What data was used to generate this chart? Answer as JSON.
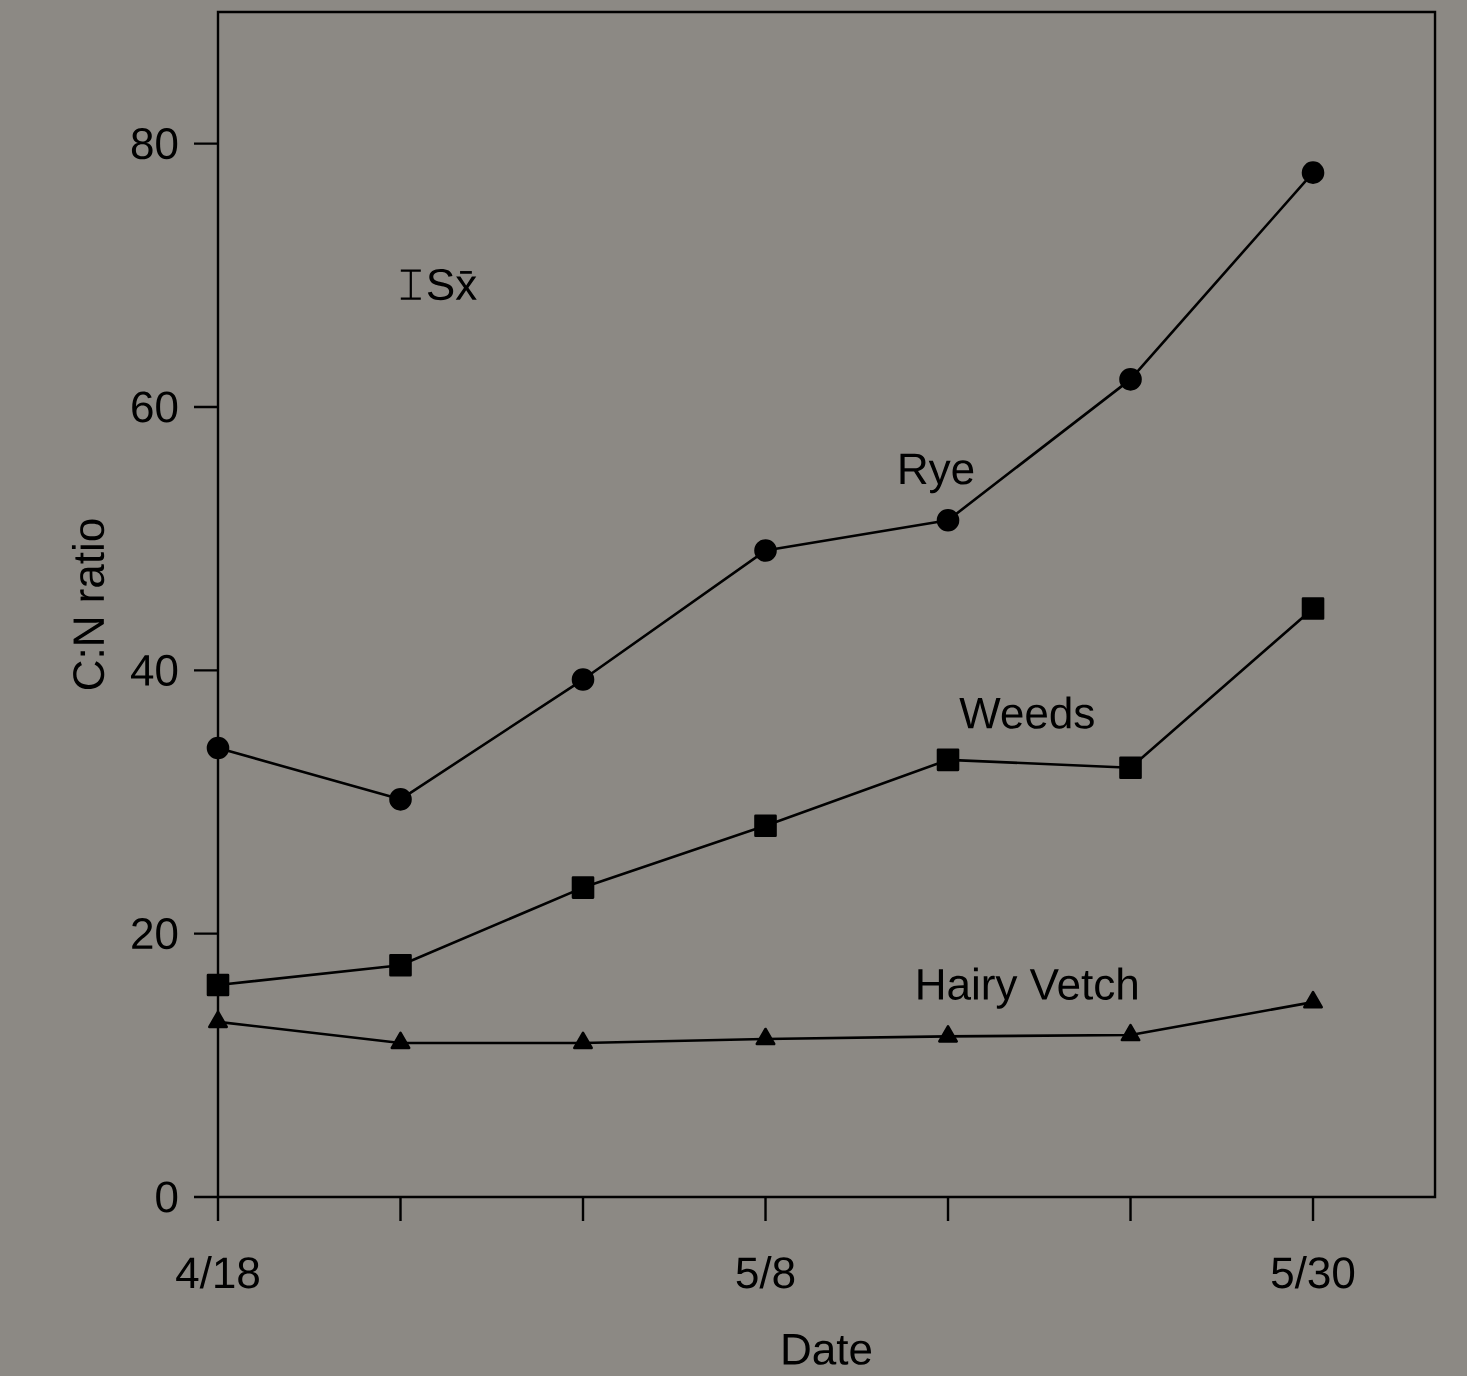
{
  "chart_data": {
    "type": "line",
    "xlabel": "Date",
    "ylabel": "C:N ratio",
    "categories": [
      "4/18",
      null,
      null,
      "5/8",
      null,
      null,
      "5/30"
    ],
    "ylim": [
      0,
      90
    ],
    "yticks": [
      0,
      20,
      40,
      60,
      80
    ],
    "grid": false,
    "legend": false,
    "line_style": "solid",
    "annotations": [
      "Sx̄"
    ],
    "series": [
      {
        "name": "Rye",
        "color": "#000000",
        "marker": "circle",
        "values": [
          34.1,
          30.2,
          39.3,
          49.1,
          51.4,
          62.1,
          77.8
        ]
      },
      {
        "name": "Weeds",
        "color": "#000000",
        "marker": "square",
        "values": [
          16.1,
          17.6,
          23.5,
          28.2,
          33.2,
          32.6,
          44.7
        ]
      },
      {
        "name": "Hairy Vetch",
        "color": "#000000",
        "marker": "triangle",
        "values": [
          13.3,
          11.7,
          11.7,
          12.0,
          12.2,
          12.3,
          14.8
        ]
      }
    ]
  }
}
